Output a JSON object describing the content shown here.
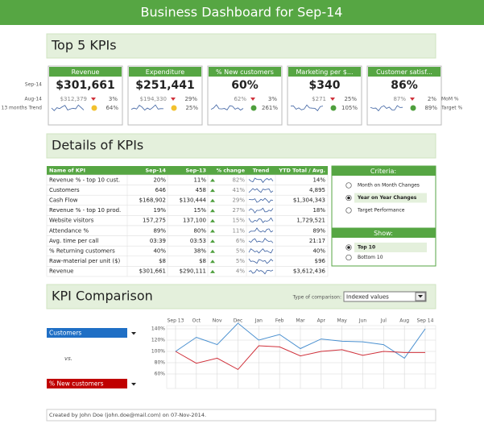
{
  "header": {
    "title": "Business Dashboard for Sep-14"
  },
  "top_kpis": {
    "title": "Top 5 KPIs",
    "row_labels": [
      "Sep-14",
      "Aug-14",
      "13 months Trend"
    ],
    "right_labels": [
      "MoM %",
      "Target %"
    ],
    "cards": [
      {
        "name": "Revenue",
        "current": "$301,661",
        "previous": "$312,379",
        "mom": "3%",
        "target": "64%",
        "target_color": "#f2c12e"
      },
      {
        "name": "Expenditure",
        "current": "$251,441",
        "previous": "$194,330",
        "mom": "29%",
        "target": "25%",
        "target_color": "#f2c12e"
      },
      {
        "name": "% New customers",
        "current": "60%",
        "previous": "62%",
        "mom": "3%",
        "target": "261%",
        "target_color": "#4e9f3d"
      },
      {
        "name": "Marketing per $...",
        "current": "$340",
        "previous": "$271",
        "mom": "25%",
        "target": "105%",
        "target_color": "#4e9f3d"
      },
      {
        "name": "Customer satisf...",
        "current": "86%",
        "previous": "87%",
        "mom": "2%",
        "target": "89%",
        "target_color": "#4e9f3d"
      }
    ]
  },
  "details": {
    "title": "Details of KPIs",
    "columns": [
      "Name of KPI",
      "Sep-14",
      "Sep-13",
      "% change",
      "Trend",
      "YTD Total / Avg."
    ],
    "rows": [
      [
        "Revenue % - top 10 cust.",
        "20%",
        "11%",
        "82%",
        "14%"
      ],
      [
        "Customers",
        "646",
        "458",
        "41%",
        "4,895"
      ],
      [
        "Cash Flow",
        "$168,902",
        "$130,444",
        "29%",
        "$1,304,343"
      ],
      [
        "Revenue % - top 10 prod.",
        "19%",
        "15%",
        "27%",
        "18%"
      ],
      [
        "Website visitors",
        "157,275",
        "137,100",
        "15%",
        "1,729,521"
      ],
      [
        "Attendance %",
        "89%",
        "80%",
        "11%",
        "89%"
      ],
      [
        "Avg. time per call",
        "03:39",
        "03:53",
        "6%",
        "21:17"
      ],
      [
        "% Returning customers",
        "40%",
        "38%",
        "5%",
        "40%"
      ],
      [
        "Raw-material per unit ($)",
        "$8",
        "$8",
        "5%",
        "$96"
      ],
      [
        "Revenue",
        "$301,661",
        "$290,111",
        "4%",
        "$3,612,436"
      ]
    ]
  },
  "criteria": {
    "title": "Criteria:",
    "options": [
      "Month on Month Changes",
      "Year on Year Changes",
      "Target Performance"
    ],
    "selected": 1
  },
  "show": {
    "title": "Show:",
    "options": [
      "Top 10",
      "Bottom 10"
    ],
    "selected": 0
  },
  "comparison": {
    "title": "KPI Comparison",
    "type_label": "Type of comparison:",
    "type_value": "Indexed values",
    "vs": "vs."
  },
  "chart_data": {
    "type": "line",
    "categories": [
      "Sep 13",
      "Oct",
      "Nov",
      "Dec",
      "Jan",
      "Feb",
      "Mar",
      "Apr",
      "May",
      "Jun",
      "Jul",
      "Aug",
      "Sep 14"
    ],
    "series": [
      {
        "name": "Customers",
        "color": "#4a90d0",
        "values": [
          100,
          125,
          112,
          150,
          120,
          130,
          105,
          122,
          118,
          117,
          112,
          88,
          140
        ]
      },
      {
        "name": "% New customers",
        "color": "#d0303a",
        "values": [
          100,
          79,
          88,
          68,
          110,
          108,
          92,
          100,
          103,
          93,
          100,
          98,
          98
        ]
      }
    ],
    "ylim": [
      40,
      150
    ],
    "yticks": [
      {
        "value": 60,
        "label": "60%"
      },
      {
        "value": 80,
        "label": "80%"
      },
      {
        "value": 100,
        "label": "100%"
      },
      {
        "value": 120,
        "label": "120%"
      },
      {
        "value": 140,
        "label": "140%"
      }
    ],
    "grid": true
  },
  "footer": {
    "text": "Created by John Doe (john.doe@mail.com) on 07-Nov-2014."
  }
}
